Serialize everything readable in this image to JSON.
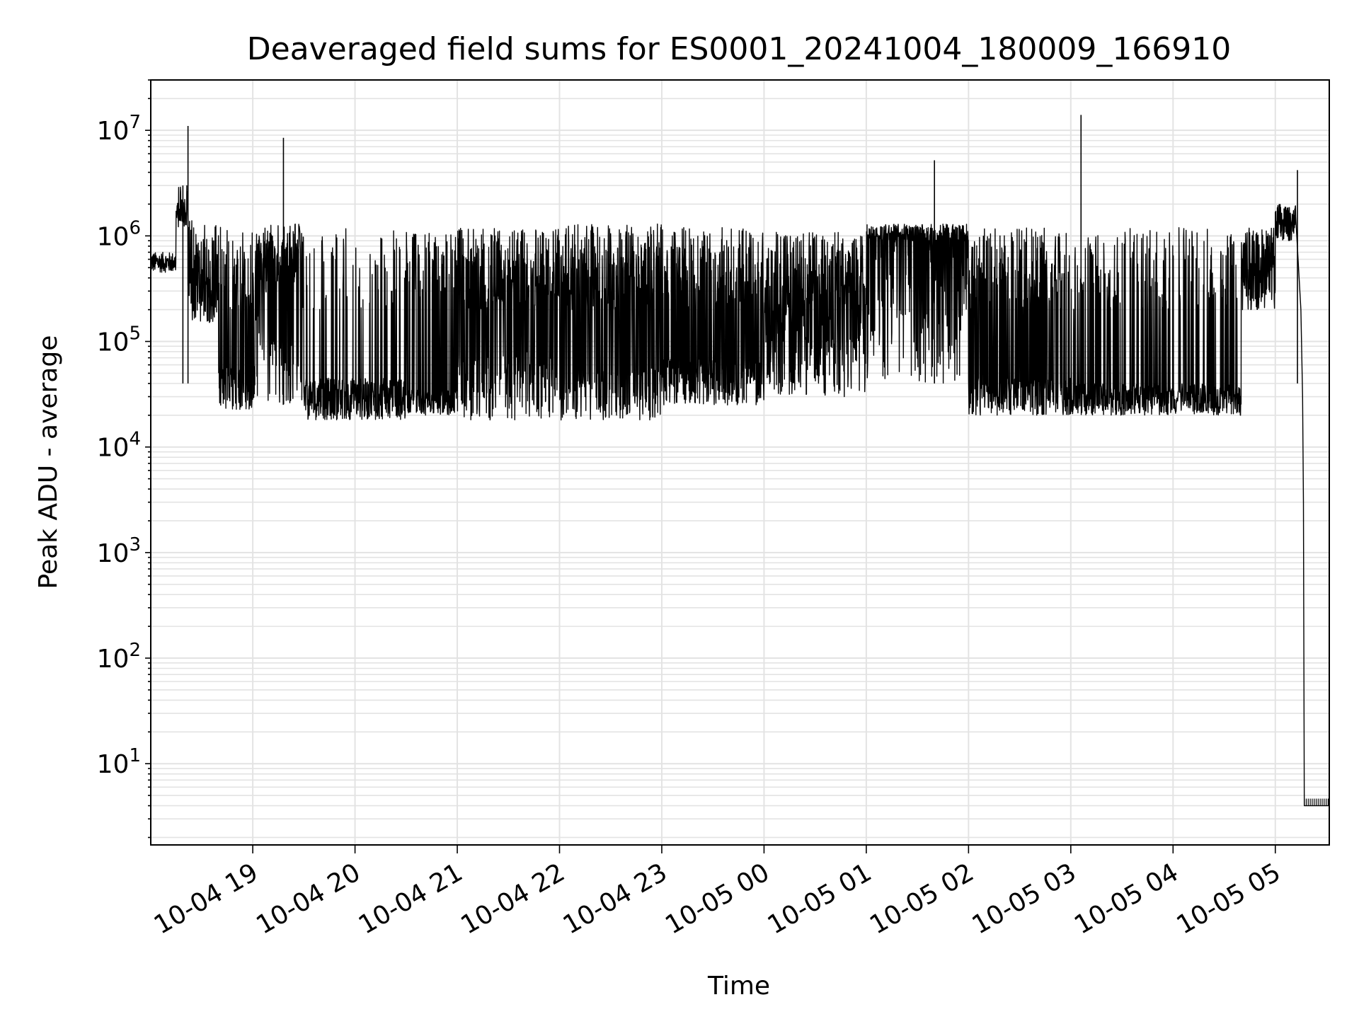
{
  "chart_data": {
    "type": "line",
    "title": "Deaveraged field sums for ES0001_20241004_180009_166910",
    "xlabel": "Time",
    "ylabel": "Peak ADU - average",
    "x_scale": "time",
    "y_scale": "log",
    "grid": true,
    "xlim": [
      "2024-10-04 18:00:09",
      "2024-10-05 05:31:40"
    ],
    "ylim": [
      1.7,
      30000000
    ],
    "x_ticks": [
      {
        "label": "10-04 19",
        "time": "2024-10-04 19:00"
      },
      {
        "label": "10-04 20",
        "time": "2024-10-04 20:00"
      },
      {
        "label": "10-04 21",
        "time": "2024-10-04 21:00"
      },
      {
        "label": "10-04 22",
        "time": "2024-10-04 22:00"
      },
      {
        "label": "10-04 23",
        "time": "2024-10-04 23:00"
      },
      {
        "label": "10-05 00",
        "time": "2024-10-05 00:00"
      },
      {
        "label": "10-05 01",
        "time": "2024-10-05 01:00"
      },
      {
        "label": "10-05 02",
        "time": "2024-10-05 02:00"
      },
      {
        "label": "10-05 03",
        "time": "2024-10-05 03:00"
      },
      {
        "label": "10-05 04",
        "time": "2024-10-05 04:00"
      },
      {
        "label": "10-05 05",
        "time": "2024-10-05 05:00"
      }
    ],
    "y_ticks": [
      {
        "base": "10",
        "exp": "1",
        "value": 10
      },
      {
        "base": "10",
        "exp": "2",
        "value": 100
      },
      {
        "base": "10",
        "exp": "3",
        "value": 1000
      },
      {
        "base": "10",
        "exp": "4",
        "value": 10000
      },
      {
        "base": "10",
        "exp": "5",
        "value": 100000
      },
      {
        "base": "10",
        "exp": "6",
        "value": 1000000
      },
      {
        "base": "10",
        "exp": "7",
        "value": 10000000
      }
    ],
    "series": [
      {
        "color": "#000000",
        "segments": [
          {
            "start": "2024-10-04 18:00:09",
            "end": "2024-10-04 18:15:00",
            "base_low": 450000,
            "base_high": 700000,
            "spike_freq": 0.0,
            "spike_max": 800000
          },
          {
            "start": "2024-10-04 18:15:00",
            "end": "2024-10-04 18:22:00",
            "base_low": 1200000,
            "base_high": 2000000,
            "spike_freq": 0.3,
            "spike_max": 3000000
          },
          {
            "start": "2024-10-04 18:22:00",
            "end": "2024-10-04 18:40:00",
            "base_low": 150000,
            "base_high": 500000,
            "spike_freq": 0.3,
            "spike_max": 1400000
          },
          {
            "start": "2024-10-04 18:40:00",
            "end": "2024-10-04 19:00:00",
            "base_low": 22000,
            "base_high": 60000,
            "spike_freq": 0.4,
            "spike_max": 1300000
          },
          {
            "start": "2024-10-04 19:00:00",
            "end": "2024-10-04 19:30:00",
            "base_low": 25000,
            "base_high": 500000,
            "spike_freq": 0.5,
            "spike_max": 1300000
          },
          {
            "start": "2024-10-04 19:30:00",
            "end": "2024-10-04 20:30:00",
            "base_low": 18000,
            "base_high": 45000,
            "spike_freq": 0.15,
            "spike_max": 1200000
          },
          {
            "start": "2024-10-04 20:30:00",
            "end": "2024-10-04 21:00:00",
            "base_low": 20000,
            "base_high": 35000,
            "spike_freq": 0.35,
            "spike_max": 1100000
          },
          {
            "start": "2024-10-04 21:00:00",
            "end": "2024-10-04 22:00:00",
            "base_low": 18000,
            "base_high": 80000,
            "spike_freq": 0.6,
            "spike_max": 1200000
          },
          {
            "start": "2024-10-04 22:00:00",
            "end": "2024-10-04 23:00:00",
            "base_low": 18000,
            "base_high": 60000,
            "spike_freq": 0.55,
            "spike_max": 1300000
          },
          {
            "start": "2024-10-04 23:00:00",
            "end": "2024-10-05 00:00:00",
            "base_low": 25000,
            "base_high": 70000,
            "spike_freq": 0.4,
            "spike_max": 1200000
          },
          {
            "start": "2024-10-05 00:00:00",
            "end": "2024-10-05 01:00:00",
            "base_low": 30000,
            "base_high": 200000,
            "spike_freq": 0.5,
            "spike_max": 1100000
          },
          {
            "start": "2024-10-05 01:00:00",
            "end": "2024-10-05 02:00:00",
            "base_low": 40000,
            "base_high": 900000,
            "spike_freq": 0.6,
            "spike_max": 1300000
          },
          {
            "start": "2024-10-05 02:00:00",
            "end": "2024-10-05 03:00:00",
            "base_low": 20000,
            "base_high": 45000,
            "spike_freq": 0.35,
            "spike_max": 1200000
          },
          {
            "start": "2024-10-05 03:00:00",
            "end": "2024-10-05 04:40:00",
            "base_low": 20000,
            "base_high": 40000,
            "spike_freq": 0.25,
            "spike_max": 1200000
          },
          {
            "start": "2024-10-05 04:40:00",
            "end": "2024-10-05 05:00:00",
            "base_low": 200000,
            "base_high": 900000,
            "spike_freq": 0.2,
            "spike_max": 1200000
          },
          {
            "start": "2024-10-05 05:00:00",
            "end": "2024-10-05 05:12:00",
            "base_low": 900000,
            "base_high": 1800000,
            "spike_freq": 0.2,
            "spike_max": 2000000
          }
        ],
        "spikes": [
          {
            "time": "2024-10-04 18:22:00",
            "value": 11000000
          },
          {
            "time": "2024-10-04 19:18:00",
            "value": 8500000
          },
          {
            "time": "2024-10-04 18:19:00",
            "value": 3000000
          },
          {
            "time": "2024-10-05 01:40:00",
            "value": 5200000
          },
          {
            "time": "2024-10-05 03:06:00",
            "value": 14000000
          },
          {
            "time": "2024-10-05 05:13:00",
            "value": 4200000
          }
        ],
        "drop": [
          {
            "time": "2024-10-05 05:12:00",
            "value": 1500000
          },
          {
            "time": "2024-10-05 05:15:00",
            "value": 200000
          },
          {
            "time": "2024-10-05 05:16:00",
            "value": 30000
          },
          {
            "time": "2024-10-05 05:16:30",
            "value": 3000
          },
          {
            "time": "2024-10-05 05:17:00",
            "value": 4
          },
          {
            "time": "2024-10-05 05:31:40",
            "value": 4
          }
        ]
      }
    ]
  }
}
